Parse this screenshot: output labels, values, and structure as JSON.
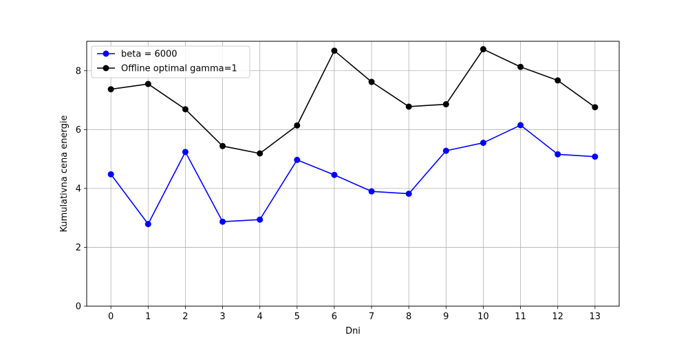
{
  "chart_data": {
    "type": "line",
    "title": "",
    "xlabel": "Dni",
    "ylabel": "Kumulativna cena energie",
    "x": [
      0,
      1,
      2,
      3,
      4,
      5,
      6,
      7,
      8,
      9,
      10,
      11,
      12,
      13
    ],
    "x_tick_labels": [
      "0",
      "1",
      "2",
      "3",
      "4",
      "5",
      "6",
      "7",
      "8",
      "9",
      "10",
      "11",
      "12",
      "13"
    ],
    "y_ticks": [
      0,
      2,
      4,
      6,
      8
    ],
    "y_tick_labels": [
      "0",
      "2",
      "4",
      "6",
      "8"
    ],
    "xlim": [
      -0.65,
      13.65
    ],
    "ylim": [
      0,
      9.0
    ],
    "grid": true,
    "legend_position": "top-left",
    "series": [
      {
        "name": "beta = 6000",
        "color": "#0000ff",
        "marker": "circle",
        "values": [
          4.48,
          2.79,
          5.24,
          2.87,
          2.94,
          4.97,
          4.46,
          3.9,
          3.82,
          5.28,
          5.55,
          6.15,
          5.16,
          5.08
        ]
      },
      {
        "name": "Offline optimal gamma=1",
        "color": "#000000",
        "marker": "circle",
        "values": [
          7.37,
          7.55,
          6.69,
          5.44,
          5.19,
          6.14,
          8.68,
          7.62,
          6.78,
          6.86,
          8.73,
          8.13,
          7.67,
          6.76
        ]
      }
    ]
  }
}
